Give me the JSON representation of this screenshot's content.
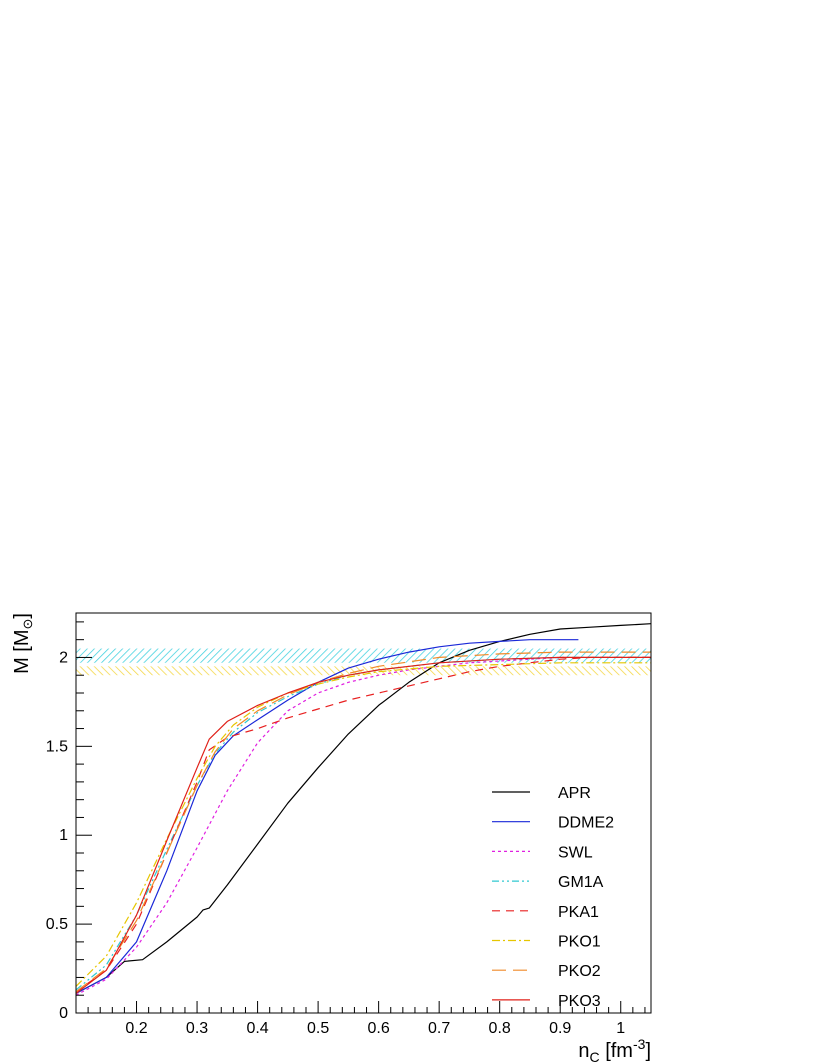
{
  "chart_data": {
    "type": "line",
    "xlabel": {
      "main": "n",
      "sub": "C",
      "rest": " [fm",
      "sup": "-3",
      "end": "]"
    },
    "ylabel": {
      "main": "M [M",
      "sub": "⊙",
      "end": "]"
    },
    "xlim": [
      0.1,
      1.05
    ],
    "ylim": [
      0,
      2.25
    ],
    "xticks": [
      0.2,
      0.3,
      0.4,
      0.5,
      0.6,
      0.7,
      0.8,
      0.9,
      1
    ],
    "xtick_labels": [
      "0.2",
      "0.3",
      "0.4",
      "0.5",
      "0.6",
      "0.7",
      "0.8",
      "0.9",
      "1"
    ],
    "yticks": [
      0,
      0.5,
      1,
      1.5,
      2
    ],
    "ytick_labels": [
      "0",
      "0.5",
      "1",
      "1.5",
      "2"
    ],
    "grid": false,
    "legend_position": "bottom-right",
    "bands": [
      {
        "ymin": 1.97,
        "ymax": 2.05,
        "color": "#46d2e0"
      },
      {
        "ymin": 1.9,
        "ymax": 1.95,
        "color": "#f5d84a"
      }
    ],
    "series": [
      {
        "name": "APR",
        "color": "#000000",
        "dash": "",
        "x": [
          0.1,
          0.15,
          0.18,
          0.21,
          0.25,
          0.3,
          0.31,
          0.32,
          0.35,
          0.4,
          0.45,
          0.5,
          0.55,
          0.6,
          0.65,
          0.7,
          0.75,
          0.8,
          0.85,
          0.9,
          0.95,
          1.0,
          1.05
        ],
        "y": [
          0.11,
          0.2,
          0.29,
          0.3,
          0.4,
          0.54,
          0.58,
          0.59,
          0.72,
          0.95,
          1.18,
          1.38,
          1.57,
          1.73,
          1.86,
          1.97,
          2.04,
          2.09,
          2.13,
          2.16,
          2.17,
          2.18,
          2.19
        ]
      },
      {
        "name": "DDME2",
        "color": "#1a28d8",
        "dash": "",
        "x": [
          0.1,
          0.15,
          0.2,
          0.25,
          0.3,
          0.33,
          0.36,
          0.4,
          0.45,
          0.5,
          0.55,
          0.6,
          0.65,
          0.7,
          0.75,
          0.8,
          0.85,
          0.9,
          0.93
        ],
        "y": [
          0.11,
          0.2,
          0.4,
          0.8,
          1.25,
          1.45,
          1.56,
          1.65,
          1.76,
          1.86,
          1.94,
          1.99,
          2.03,
          2.06,
          2.08,
          2.09,
          2.1,
          2.1,
          2.1
        ]
      },
      {
        "name": "SWL",
        "color": "#e020e0",
        "dash": "3 3",
        "x": [
          0.1,
          0.15,
          0.2,
          0.25,
          0.3,
          0.35,
          0.4,
          0.45,
          0.5,
          0.55,
          0.6,
          0.65,
          0.7,
          0.75,
          0.8,
          0.85,
          0.9
        ],
        "y": [
          0.1,
          0.19,
          0.37,
          0.62,
          0.93,
          1.25,
          1.52,
          1.7,
          1.8,
          1.86,
          1.9,
          1.93,
          1.95,
          1.97,
          1.98,
          1.99,
          2.0
        ]
      },
      {
        "name": "GM1A",
        "color": "#30c8d0",
        "dash": "7 3 2 3 2 3",
        "x": [
          0.1,
          0.15,
          0.2,
          0.25,
          0.3,
          0.33,
          0.36,
          0.4,
          0.45,
          0.5,
          0.55,
          0.6,
          0.7,
          0.8,
          0.9,
          1.0,
          1.05
        ],
        "y": [
          0.13,
          0.27,
          0.55,
          0.92,
          1.28,
          1.46,
          1.58,
          1.69,
          1.78,
          1.85,
          1.9,
          1.93,
          1.97,
          1.99,
          2.0,
          2.0,
          2.0
        ]
      },
      {
        "name": "PKA1",
        "color": "#e82020",
        "dash": "8 6",
        "x": [
          0.1,
          0.15,
          0.2,
          0.25,
          0.3,
          0.32,
          0.35,
          0.4,
          0.45,
          0.5,
          0.55,
          0.6,
          0.65,
          0.7,
          0.75,
          0.8,
          0.85,
          0.9,
          0.95,
          1.0,
          1.05
        ],
        "y": [
          0.12,
          0.24,
          0.5,
          0.9,
          1.3,
          1.48,
          1.55,
          1.6,
          1.66,
          1.71,
          1.76,
          1.8,
          1.84,
          1.88,
          1.92,
          1.95,
          1.97,
          1.99,
          2.0,
          2.0,
          2.0
        ]
      },
      {
        "name": "PKO1",
        "color": "#e6c600",
        "dash": "8 3 2 3",
        "x": [
          0.1,
          0.15,
          0.2,
          0.25,
          0.3,
          0.33,
          0.36,
          0.4,
          0.45,
          0.5,
          0.55,
          0.6,
          0.7,
          0.8,
          0.9,
          1.0,
          1.05
        ],
        "y": [
          0.15,
          0.32,
          0.62,
          0.98,
          1.32,
          1.5,
          1.62,
          1.72,
          1.8,
          1.85,
          1.89,
          1.92,
          1.95,
          1.96,
          1.97,
          1.97,
          1.97
        ]
      },
      {
        "name": "PKO2",
        "color": "#f08a28",
        "dash": "14 7",
        "x": [
          0.1,
          0.15,
          0.2,
          0.25,
          0.3,
          0.33,
          0.36,
          0.4,
          0.45,
          0.5,
          0.55,
          0.6,
          0.7,
          0.8,
          0.9,
          1.0,
          1.05
        ],
        "y": [
          0.12,
          0.25,
          0.52,
          0.9,
          1.28,
          1.47,
          1.6,
          1.7,
          1.79,
          1.86,
          1.91,
          1.95,
          2.0,
          2.02,
          2.03,
          2.03,
          2.03
        ]
      },
      {
        "name": "PKO3",
        "color": "#e02018",
        "dash": "",
        "x": [
          0.1,
          0.15,
          0.2,
          0.25,
          0.3,
          0.32,
          0.35,
          0.4,
          0.45,
          0.5,
          0.55,
          0.6,
          0.7,
          0.8,
          0.9,
          1.0,
          1.05
        ],
        "y": [
          0.11,
          0.24,
          0.55,
          0.97,
          1.38,
          1.54,
          1.64,
          1.73,
          1.8,
          1.86,
          1.9,
          1.93,
          1.97,
          1.99,
          2.0,
          2.0,
          2.0
        ]
      }
    ]
  }
}
